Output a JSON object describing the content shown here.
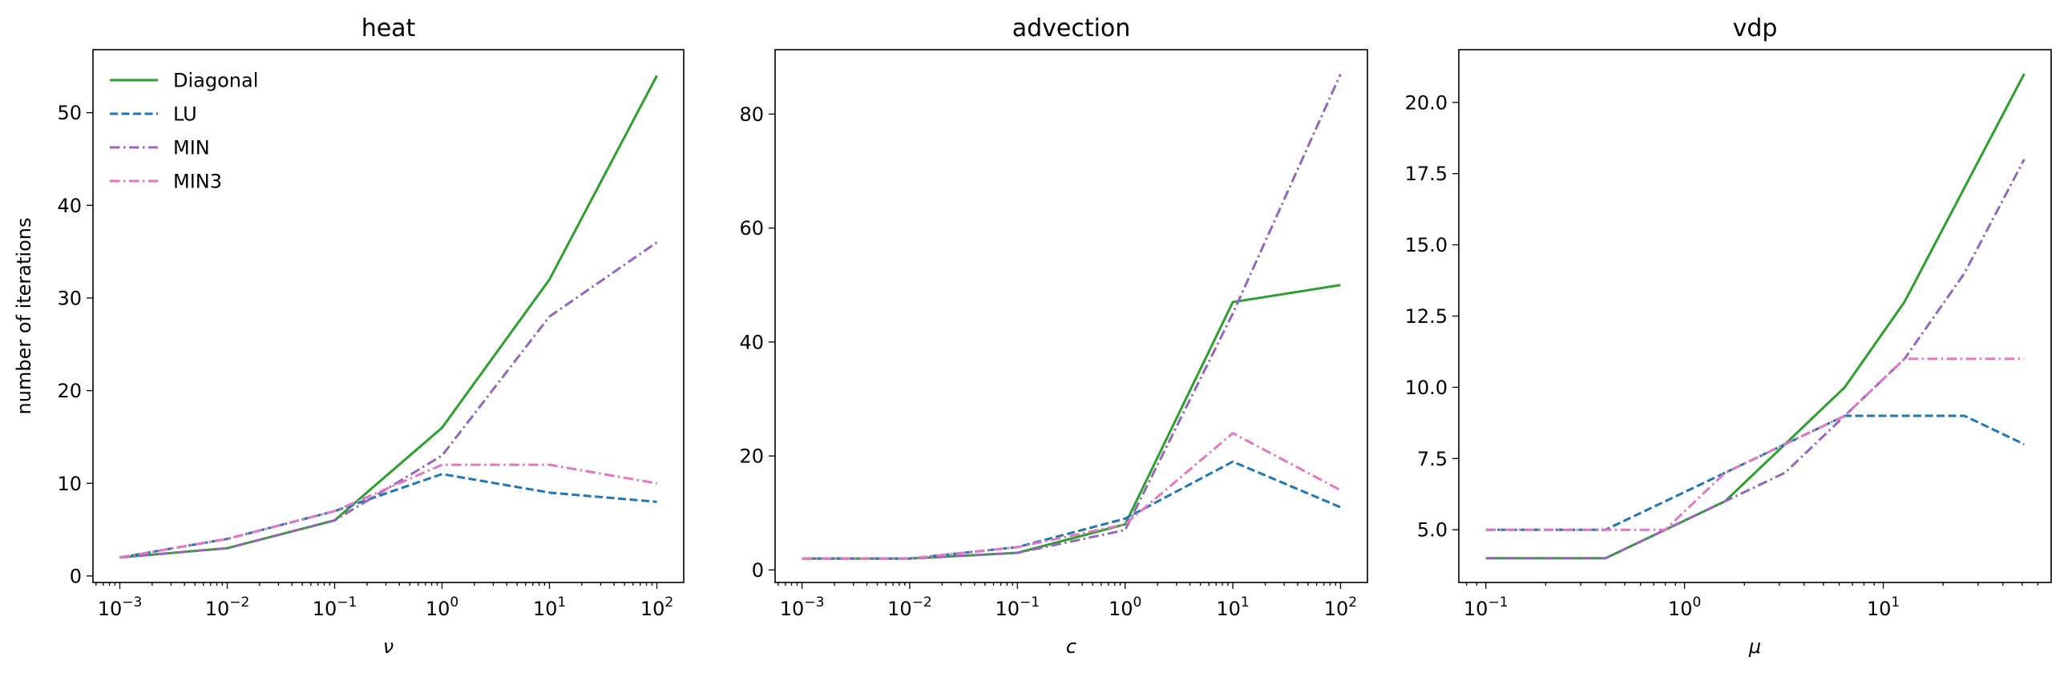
{
  "chart_data": [
    {
      "type": "line",
      "title": "heat",
      "xlabel": "ν",
      "ylabel": "number of iterations",
      "xscale": "log",
      "x": [
        0.001,
        0.01,
        0.1,
        1,
        10,
        100
      ],
      "xticks": [
        {
          "value": 0.001,
          "base": "10",
          "exp": "−3"
        },
        {
          "value": 0.01,
          "base": "10",
          "exp": "−2"
        },
        {
          "value": 0.1,
          "base": "10",
          "exp": "−1"
        },
        {
          "value": 1,
          "base": "10",
          "exp": "0"
        },
        {
          "value": 10,
          "base": "10",
          "exp": "1"
        },
        {
          "value": 100,
          "base": "10",
          "exp": "2"
        }
      ],
      "yticks": [
        "0",
        "10",
        "20",
        "30",
        "40",
        "50"
      ],
      "ylim": [
        -0.7,
        56.8
      ],
      "xlim_log10": [
        -3.25,
        2.25
      ],
      "legend": "top-left",
      "series": [
        {
          "name": "Diagonal",
          "values": [
            2,
            3,
            6,
            16,
            32,
            54
          ]
        },
        {
          "name": "LU",
          "values": [
            2,
            4,
            7,
            11,
            9,
            8
          ]
        },
        {
          "name": "MIN",
          "values": [
            2,
            3,
            6,
            13,
            28,
            36
          ]
        },
        {
          "name": "MIN3",
          "values": [
            2,
            4,
            7,
            12,
            12,
            10
          ]
        }
      ]
    },
    {
      "type": "line",
      "title": "advection",
      "xlabel": "c",
      "ylabel": "",
      "xscale": "log",
      "x": [
        0.001,
        0.01,
        0.1,
        1,
        10,
        100
      ],
      "xticks": [
        {
          "value": 0.001,
          "base": "10",
          "exp": "−3"
        },
        {
          "value": 0.01,
          "base": "10",
          "exp": "−2"
        },
        {
          "value": 0.1,
          "base": "10",
          "exp": "−1"
        },
        {
          "value": 1,
          "base": "10",
          "exp": "0"
        },
        {
          "value": 10,
          "base": "10",
          "exp": "1"
        },
        {
          "value": 100,
          "base": "10",
          "exp": "2"
        }
      ],
      "yticks": [
        "0",
        "20",
        "40",
        "60",
        "80"
      ],
      "ylim": [
        -2.2,
        91.3
      ],
      "xlim_log10": [
        -3.25,
        2.25
      ],
      "series": [
        {
          "name": "Diagonal",
          "values": [
            2,
            2,
            3,
            8,
            47,
            50
          ]
        },
        {
          "name": "LU",
          "values": [
            2,
            2,
            4,
            9,
            19,
            11
          ]
        },
        {
          "name": "MIN",
          "values": [
            2,
            2,
            3,
            7,
            45,
            87
          ]
        },
        {
          "name": "MIN3",
          "values": [
            2,
            2,
            4,
            8,
            24,
            14
          ]
        }
      ]
    },
    {
      "type": "line",
      "title": "vdp",
      "xlabel": "μ",
      "ylabel": "",
      "xscale": "log",
      "x": [
        0.1,
        0.4,
        0.8,
        1.6,
        3.2,
        6.4,
        12.8,
        25.6,
        51.2
      ],
      "xticks": [
        {
          "value": 0.1,
          "base": "10",
          "exp": "−1"
        },
        {
          "value": 1,
          "base": "10",
          "exp": "0"
        },
        {
          "value": 10,
          "base": "10",
          "exp": "1"
        }
      ],
      "yticks": [
        "5.0",
        "7.5",
        "10.0",
        "12.5",
        "15.0",
        "17.5",
        "20.0"
      ],
      "ylim": [
        3.15,
        21.85
      ],
      "xlim_log10": [
        -1.136,
        1.845
      ],
      "series": [
        {
          "name": "Diagonal",
          "values": [
            4,
            4,
            5,
            6,
            8,
            10,
            13,
            17,
            21
          ]
        },
        {
          "name": "LU",
          "values": [
            5,
            5,
            6,
            7,
            8,
            9,
            9,
            9,
            8
          ]
        },
        {
          "name": "MIN",
          "values": [
            4,
            4,
            5,
            6,
            7,
            9,
            11,
            14,
            18
          ]
        },
        {
          "name": "MIN3",
          "values": [
            5,
            5,
            5,
            7,
            8,
            9,
            11,
            11,
            11
          ]
        }
      ]
    }
  ],
  "styles": {
    "Diagonal": {
      "color": "#2ca02c",
      "dash": "solid"
    },
    "LU": {
      "color": "#1f77b4",
      "dash": "dashed"
    },
    "MIN": {
      "color": "#9467bd",
      "dash": "dashdot"
    },
    "MIN3": {
      "color": "#e377c2",
      "dash": "dashdot"
    }
  }
}
